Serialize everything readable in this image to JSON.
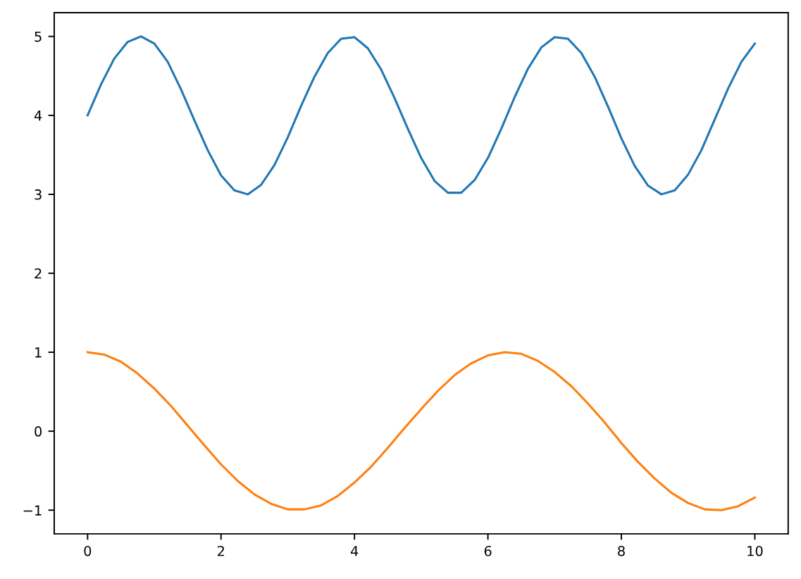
{
  "chart_data": {
    "type": "line",
    "xlim": [
      -0.5,
      10.5
    ],
    "ylim": [
      -1.3,
      5.3
    ],
    "xticks": [
      0,
      2,
      4,
      6,
      8,
      10
    ],
    "yticks": [
      {
        "value": -1,
        "label": "−1"
      },
      0,
      1,
      2,
      3,
      4,
      5
    ],
    "grid": false,
    "marker": "none",
    "line_style": "solid",
    "series": [
      {
        "color": "#1f77b4",
        "x": [
          0,
          0.2,
          0.4,
          0.6,
          0.8,
          1.0,
          1.2,
          1.4,
          1.6,
          1.8,
          2.0,
          2.2,
          2.4,
          2.6,
          2.8,
          3.0,
          3.2,
          3.4,
          3.6,
          3.8,
          4.0,
          4.2,
          4.4,
          4.6,
          4.8,
          5.0,
          5.2,
          5.4,
          5.6,
          5.8,
          6.0,
          6.2,
          6.4,
          6.6,
          6.8,
          7.0,
          7.2,
          7.4,
          7.6,
          7.8,
          8.0,
          8.2,
          8.4,
          8.6,
          8.8,
          9.0,
          9.2,
          9.4,
          9.6,
          9.8,
          10.0
        ],
        "values": [
          4.0,
          4.39,
          4.72,
          4.93,
          5.0,
          4.91,
          4.68,
          4.33,
          3.94,
          3.56,
          3.24,
          3.05,
          3.0,
          3.12,
          3.37,
          3.72,
          4.12,
          4.49,
          4.79,
          4.97,
          4.99,
          4.85,
          4.58,
          4.22,
          3.83,
          3.46,
          3.17,
          3.02,
          3.02,
          3.18,
          3.46,
          3.83,
          4.23,
          4.59,
          4.86,
          4.99,
          4.97,
          4.79,
          4.49,
          4.11,
          3.71,
          3.36,
          3.11,
          3.0,
          3.05,
          3.25,
          3.56,
          3.95,
          4.34,
          4.68,
          4.91
        ]
      },
      {
        "color": "#ff7f0e",
        "x": [
          0,
          0.25,
          0.5,
          0.75,
          1.0,
          1.25,
          1.5,
          1.75,
          2.0,
          2.25,
          2.5,
          2.75,
          3.0,
          3.25,
          3.5,
          3.75,
          4.0,
          4.25,
          4.5,
          4.75,
          5.0,
          5.25,
          5.5,
          5.75,
          6.0,
          6.25,
          6.5,
          6.75,
          7.0,
          7.25,
          7.5,
          7.75,
          8.0,
          8.25,
          8.5,
          8.75,
          9.0,
          9.25,
          9.5,
          9.75,
          10.0
        ],
        "values": [
          1.0,
          0.97,
          0.88,
          0.73,
          0.54,
          0.32,
          0.07,
          -0.18,
          -0.42,
          -0.63,
          -0.8,
          -0.92,
          -0.99,
          -0.99,
          -0.94,
          -0.82,
          -0.65,
          -0.45,
          -0.21,
          0.04,
          0.28,
          0.51,
          0.71,
          0.86,
          0.96,
          1.0,
          0.98,
          0.89,
          0.75,
          0.57,
          0.35,
          0.11,
          -0.15,
          -0.39,
          -0.6,
          -0.78,
          -0.91,
          -0.99,
          -1.0,
          -0.95,
          -0.84
        ]
      }
    ]
  }
}
